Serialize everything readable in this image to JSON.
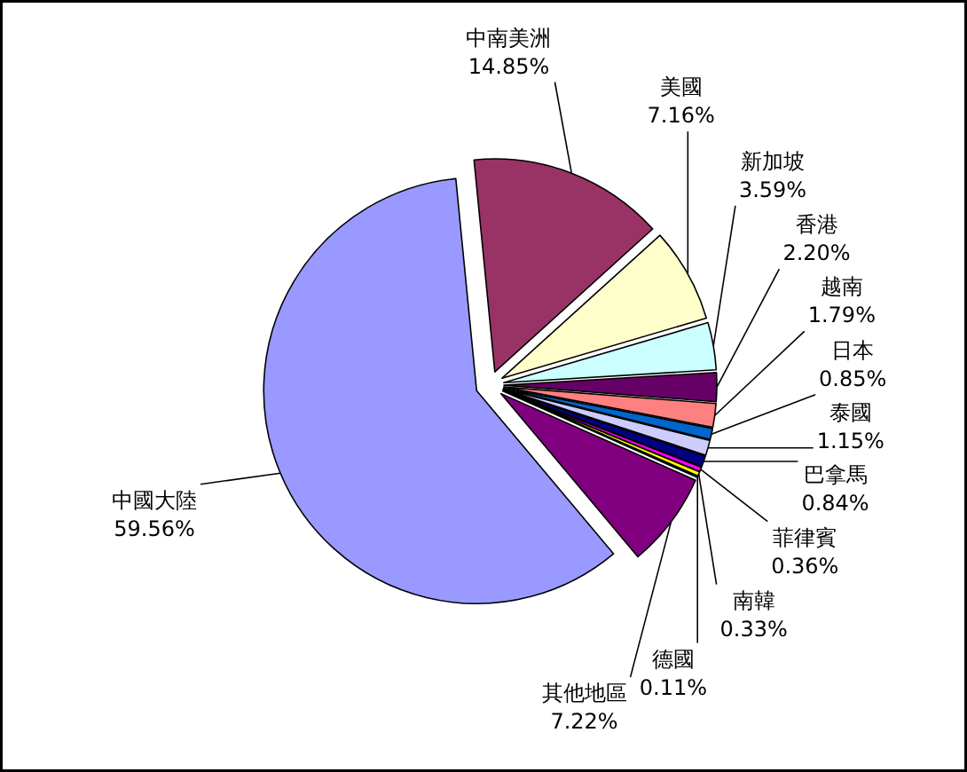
{
  "chart_data": {
    "type": "pie",
    "categories": [
      "中國大陸",
      "中南美洲",
      "美國",
      "新加坡",
      "香港",
      "越南",
      "日本",
      "泰國",
      "巴拿馬",
      "菲律賓",
      "南韓",
      "德國",
      "其他地區"
    ],
    "values": [
      59.56,
      14.85,
      7.16,
      3.59,
      2.2,
      1.79,
      0.85,
      1.15,
      0.84,
      0.36,
      0.33,
      0.11,
      7.22
    ],
    "value_labels": [
      "59.56%",
      "14.85%",
      "7.16%",
      "3.59%",
      "2.20%",
      "1.79%",
      "0.85%",
      "1.15%",
      "0.84%",
      "0.36%",
      "0.33%",
      "0.11%",
      "7.22%"
    ],
    "colors": [
      "#9999ff",
      "#993366",
      "#ffffcc",
      "#ccffff",
      "#660066",
      "#ff8080",
      "#0066cc",
      "#ccccff",
      "#000080",
      "#ff00ff",
      "#ffff00",
      "#00ffff",
      "#800080"
    ]
  }
}
